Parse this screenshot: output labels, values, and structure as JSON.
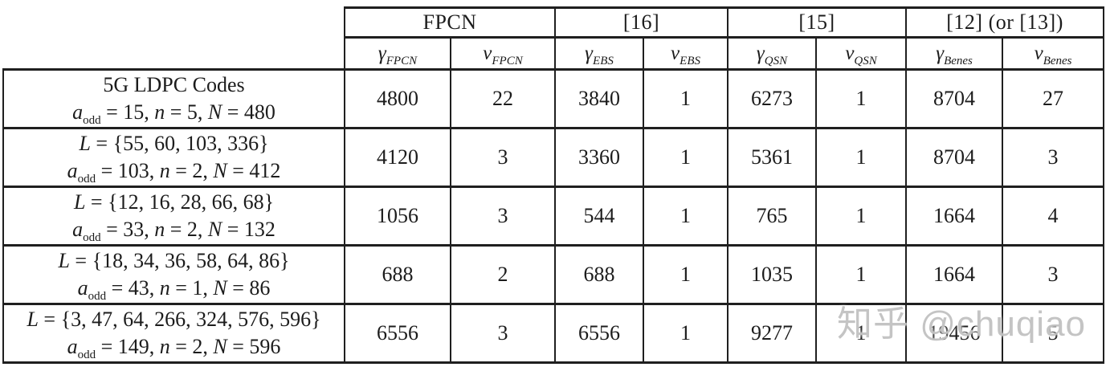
{
  "watermark": {
    "text": "知乎 @chuqiao",
    "color": "#c1c1c1"
  },
  "table": {
    "column_groups": [
      {
        "id": "fpcn",
        "label": "FPCN",
        "span": 2
      },
      {
        "id": "ref16",
        "label": "[16]",
        "span": 2
      },
      {
        "id": "ref15",
        "label": "[15]",
        "span": 2
      },
      {
        "id": "ref12-13",
        "label": "[12] (or [13])",
        "span": 2
      }
    ],
    "sub_columns": [
      {
        "id": "gamma-fpcn",
        "base": "γ",
        "sub": "FPCN"
      },
      {
        "id": "nu-fpcn",
        "base": "ν",
        "sub": "FPCN"
      },
      {
        "id": "gamma-ebs",
        "base": "γ",
        "sub": "EBS"
      },
      {
        "id": "nu-ebs",
        "base": "ν",
        "sub": "EBS"
      },
      {
        "id": "gamma-qsn",
        "base": "γ",
        "sub": "QSN"
      },
      {
        "id": "nu-qsn",
        "base": "ν",
        "sub": "QSN"
      },
      {
        "id": "gamma-benes",
        "base": "γ",
        "sub": "Benes"
      },
      {
        "id": "nu-benes",
        "base": "ν",
        "sub": "Benes"
      }
    ],
    "rows": [
      {
        "label_line1": [
          {
            "t": "5G LDPC Codes",
            "k": "rm"
          }
        ],
        "label_line2": [
          {
            "t": "a",
            "k": "it"
          },
          {
            "t": "odd",
            "k": "sub"
          },
          {
            "t": " = 15, ",
            "k": "rm"
          },
          {
            "t": "n",
            "k": "it"
          },
          {
            "t": " = 5, ",
            "k": "rm"
          },
          {
            "t": "N",
            "k": "it"
          },
          {
            "t": " = 480",
            "k": "rm"
          }
        ],
        "values": [
          "4800",
          "22",
          "3840",
          "1",
          "6273",
          "1",
          "8704",
          "27"
        ]
      },
      {
        "label_line1": [
          {
            "t": "L",
            "k": "it"
          },
          {
            "t": " = {55, 60, 103, 336}",
            "k": "rm"
          }
        ],
        "label_line2": [
          {
            "t": "a",
            "k": "it"
          },
          {
            "t": "odd",
            "k": "sub"
          },
          {
            "t": " = 103, ",
            "k": "rm"
          },
          {
            "t": "n",
            "k": "it"
          },
          {
            "t": " = 2, ",
            "k": "rm"
          },
          {
            "t": "N",
            "k": "it"
          },
          {
            "t": " = 412",
            "k": "rm"
          }
        ],
        "values": [
          "4120",
          "3",
          "3360",
          "1",
          "5361",
          "1",
          "8704",
          "3"
        ]
      },
      {
        "label_line1": [
          {
            "t": "L",
            "k": "it"
          },
          {
            "t": " = {12, 16, 28, 66, 68}",
            "k": "rm"
          }
        ],
        "label_line2": [
          {
            "t": "a",
            "k": "it"
          },
          {
            "t": "odd",
            "k": "sub"
          },
          {
            "t": " = 33, ",
            "k": "rm"
          },
          {
            "t": "n",
            "k": "it"
          },
          {
            "t": " = 2, ",
            "k": "rm"
          },
          {
            "t": "N",
            "k": "it"
          },
          {
            "t": " = 132",
            "k": "rm"
          }
        ],
        "values": [
          "1056",
          "3",
          "544",
          "1",
          "765",
          "1",
          "1664",
          "4"
        ]
      },
      {
        "label_line1": [
          {
            "t": "L",
            "k": "it"
          },
          {
            "t": " = {18, 34, 36, 58, 64, 86}",
            "k": "rm"
          }
        ],
        "label_line2": [
          {
            "t": "a",
            "k": "it"
          },
          {
            "t": "odd",
            "k": "sub"
          },
          {
            "t": " = 43, ",
            "k": "rm"
          },
          {
            "t": "n",
            "k": "it"
          },
          {
            "t": " = 1, ",
            "k": "rm"
          },
          {
            "t": "N",
            "k": "it"
          },
          {
            "t": " = 86",
            "k": "rm"
          }
        ],
        "values": [
          "688",
          "2",
          "688",
          "1",
          "1035",
          "1",
          "1664",
          "3"
        ]
      },
      {
        "label_line1": [
          {
            "t": "L",
            "k": "it"
          },
          {
            "t": " = {3, 47, 64, 266, 324, 576, 596}",
            "k": "rm"
          }
        ],
        "label_line2": [
          {
            "t": "a",
            "k": "it"
          },
          {
            "t": "odd",
            "k": "sub"
          },
          {
            "t": " = 149, ",
            "k": "rm"
          },
          {
            "t": "n",
            "k": "it"
          },
          {
            "t": " = 2, ",
            "k": "rm"
          },
          {
            "t": "N",
            "k": "it"
          },
          {
            "t": " = 596",
            "k": "rm"
          }
        ],
        "values": [
          "6556",
          "3",
          "6556",
          "1",
          "9277",
          "1",
          "19456",
          "5"
        ]
      }
    ]
  }
}
